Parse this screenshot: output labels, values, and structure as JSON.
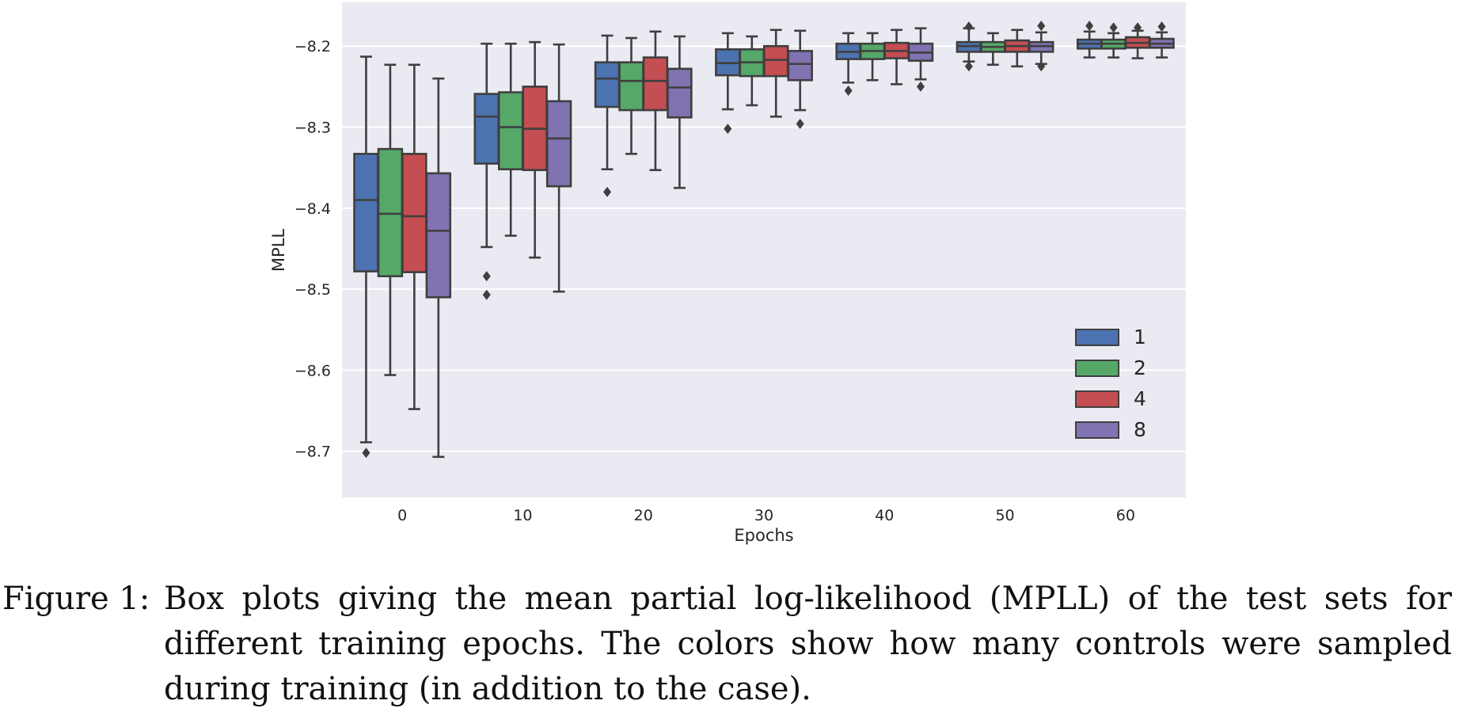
{
  "chart_data": {
    "type": "box",
    "xlabel": "Epochs",
    "ylabel": "MPLL",
    "categories": [
      "0",
      "10",
      "20",
      "30",
      "40",
      "50",
      "60"
    ],
    "yticks": [
      "−8.2",
      "−8.3",
      "−8.4",
      "−8.5",
      "−8.6",
      "−8.7"
    ],
    "ylim": [
      -8.757,
      -8.146
    ],
    "grid": true,
    "legend": {
      "placement": "lower-right"
    },
    "series": [
      {
        "name": "1",
        "color": "#4c72b0",
        "boxes": [
          {
            "whislo": -8.689,
            "q1": -8.478,
            "med": -8.39,
            "q3": -8.333,
            "whishi": -8.213,
            "fliers": [
              -8.702
            ]
          },
          {
            "whislo": -8.448,
            "q1": -8.345,
            "med": -8.287,
            "q3": -8.259,
            "whishi": -8.197,
            "fliers": [
              -8.484,
              -8.507
            ]
          },
          {
            "whislo": -8.352,
            "q1": -8.275,
            "med": -8.24,
            "q3": -8.22,
            "whishi": -8.187,
            "fliers": [
              -8.38
            ]
          },
          {
            "whislo": -8.278,
            "q1": -8.236,
            "med": -8.221,
            "q3": -8.204,
            "whishi": -8.184,
            "fliers": [
              -8.302
            ]
          },
          {
            "whislo": -8.245,
            "q1": -8.216,
            "med": -8.207,
            "q3": -8.197,
            "whishi": -8.184,
            "fliers": [
              -8.255
            ]
          },
          {
            "whislo": -8.219,
            "q1": -8.207,
            "med": -8.2,
            "q3": -8.195,
            "whishi": -8.178,
            "fliers": [
              -8.225,
              -8.176
            ]
          },
          {
            "whislo": -8.214,
            "q1": -8.203,
            "med": -8.197,
            "q3": -8.192,
            "whishi": -8.182,
            "fliers": [
              -8.175
            ]
          }
        ]
      },
      {
        "name": "2",
        "color": "#55a868",
        "boxes": [
          {
            "whislo": -8.606,
            "q1": -8.484,
            "med": -8.407,
            "q3": -8.327,
            "whishi": -8.223,
            "fliers": []
          },
          {
            "whislo": -8.434,
            "q1": -8.352,
            "med": -8.3,
            "q3": -8.257,
            "whishi": -8.197,
            "fliers": []
          },
          {
            "whislo": -8.333,
            "q1": -8.279,
            "med": -8.243,
            "q3": -8.22,
            "whishi": -8.19,
            "fliers": []
          },
          {
            "whislo": -8.273,
            "q1": -8.237,
            "med": -8.22,
            "q3": -8.204,
            "whishi": -8.188,
            "fliers": []
          },
          {
            "whislo": -8.242,
            "q1": -8.216,
            "med": -8.206,
            "q3": -8.197,
            "whishi": -8.184,
            "fliers": []
          },
          {
            "whislo": -8.223,
            "q1": -8.207,
            "med": -8.201,
            "q3": -8.195,
            "whishi": -8.184,
            "fliers": []
          },
          {
            "whislo": -8.214,
            "q1": -8.203,
            "med": -8.197,
            "q3": -8.192,
            "whishi": -8.184,
            "fliers": [
              -8.177
            ]
          }
        ]
      },
      {
        "name": "4",
        "color": "#c44e52",
        "boxes": [
          {
            "whislo": -8.648,
            "q1": -8.479,
            "med": -8.41,
            "q3": -8.333,
            "whishi": -8.223,
            "fliers": []
          },
          {
            "whislo": -8.461,
            "q1": -8.353,
            "med": -8.302,
            "q3": -8.25,
            "whishi": -8.195,
            "fliers": []
          },
          {
            "whislo": -8.353,
            "q1": -8.279,
            "med": -8.243,
            "q3": -8.214,
            "whishi": -8.182,
            "fliers": []
          },
          {
            "whislo": -8.287,
            "q1": -8.237,
            "med": -8.217,
            "q3": -8.2,
            "whishi": -8.18,
            "fliers": []
          },
          {
            "whislo": -8.247,
            "q1": -8.215,
            "med": -8.206,
            "q3": -8.196,
            "whishi": -8.18,
            "fliers": []
          },
          {
            "whislo": -8.225,
            "q1": -8.207,
            "med": -8.2,
            "q3": -8.193,
            "whishi": -8.18,
            "fliers": []
          },
          {
            "whislo": -8.215,
            "q1": -8.202,
            "med": -8.196,
            "q3": -8.189,
            "whishi": -8.181,
            "fliers": [
              -8.177
            ]
          }
        ]
      },
      {
        "name": "8",
        "color": "#8172b2",
        "boxes": [
          {
            "whislo": -8.707,
            "q1": -8.51,
            "med": -8.428,
            "q3": -8.357,
            "whishi": -8.24,
            "fliers": []
          },
          {
            "whislo": -8.503,
            "q1": -8.373,
            "med": -8.314,
            "q3": -8.268,
            "whishi": -8.198,
            "fliers": []
          },
          {
            "whislo": -8.375,
            "q1": -8.288,
            "med": -8.251,
            "q3": -8.228,
            "whishi": -8.188,
            "fliers": []
          },
          {
            "whislo": -8.279,
            "q1": -8.242,
            "med": -8.222,
            "q3": -8.206,
            "whishi": -8.181,
            "fliers": [
              -8.296
            ]
          },
          {
            "whislo": -8.241,
            "q1": -8.218,
            "med": -8.208,
            "q3": -8.197,
            "whishi": -8.178,
            "fliers": [
              -8.25
            ]
          },
          {
            "whislo": -8.222,
            "q1": -8.207,
            "med": -8.2,
            "q3": -8.195,
            "whishi": -8.183,
            "fliers": [
              -8.225,
              -8.175
            ]
          },
          {
            "whislo": -8.214,
            "q1": -8.202,
            "med": -8.197,
            "q3": -8.191,
            "whishi": -8.183,
            "fliers": [
              -8.176
            ]
          }
        ]
      }
    ]
  },
  "caption": {
    "label": "Figure 1:",
    "text": "Box plots giving the mean partial log-likelihood (MPLL) of the test sets for different training epochs. The colors show how many controls were sampled during training (in addition to the case)."
  }
}
